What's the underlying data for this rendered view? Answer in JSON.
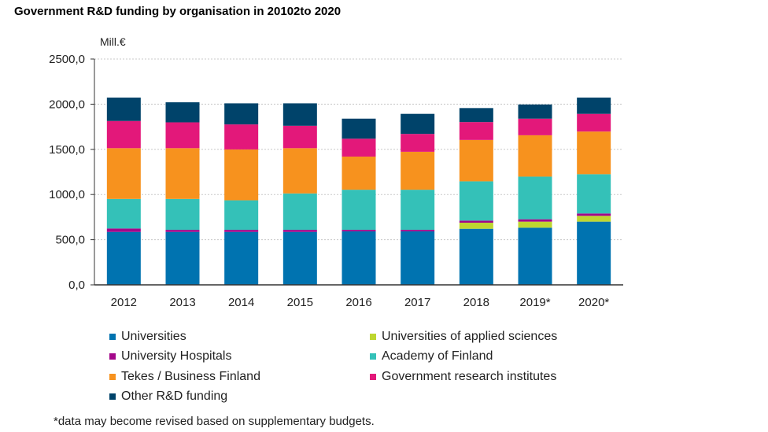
{
  "chart_data": {
    "type": "bar",
    "stacked": true,
    "title": "Government R&D funding by organisation in 20102to 2020",
    "ylabel": "Mill.€",
    "xlabel": "",
    "ylim": [
      0,
      2500
    ],
    "yticks": [
      "0,0",
      "500,0",
      "1000,0",
      "1500,0",
      "2000,0",
      "2500,0"
    ],
    "grid": true,
    "legend_position": "bottom",
    "categories": [
      "2012",
      "2013",
      "2014",
      "2015",
      "2016",
      "2017",
      "2018",
      "2019*",
      "2020*"
    ],
    "series": [
      {
        "name": "Universities",
        "color": "#0073b0",
        "values": [
          586,
          586,
          586,
          586,
          592,
          592,
          621,
          633,
          700
        ]
      },
      {
        "name": "Universities of applied sciences",
        "color": "#bed630",
        "values": [
          0,
          0,
          0,
          0,
          0,
          0,
          67,
          67,
          64
        ]
      },
      {
        "name": "University Hospitals",
        "color": "#a3078a",
        "values": [
          38,
          23,
          23,
          23,
          17,
          17,
          23,
          26,
          26
        ]
      },
      {
        "name": "Academy of Finland",
        "color": "#34c1b8",
        "values": [
          327,
          342,
          327,
          403,
          444,
          444,
          435,
          472,
          435
        ]
      },
      {
        "name": "Tekes / Business Finland",
        "color": "#f7921e",
        "values": [
          562,
          562,
          563,
          501,
          367,
          420,
          458,
          458,
          472
        ]
      },
      {
        "name": "Government research institutes",
        "color": "#e3187a",
        "values": [
          301,
          286,
          277,
          248,
          198,
          198,
          198,
          184,
          196
        ]
      },
      {
        "name": "Other R&D funding",
        "color": "#00436a",
        "values": [
          259,
          222,
          233,
          248,
          222,
          222,
          155,
          157,
          180
        ]
      }
    ],
    "legend_order": [
      0,
      1,
      2,
      3,
      4,
      5,
      6
    ],
    "footnote": "*data may become revised based on supplementary budgets."
  }
}
